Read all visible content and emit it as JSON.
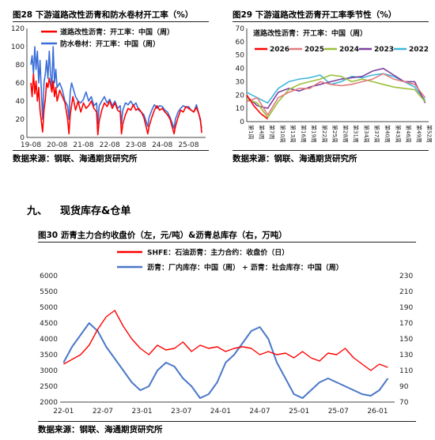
{
  "charts": {
    "c28": {
      "title": "图28 下游道路改性沥青和防水卷材开工率（%）",
      "source": "数据来源：钢联、海通期货研究所",
      "legend": [
        "道路改性沥青：开工率：中国（周）",
        "防水卷材：开工率：中国（周）"
      ]
    },
    "c29": {
      "title": "图29 下游道路改性沥青开工率季节性（%）",
      "source": "数据来源：钢联、海通期货研究所",
      "legend_title": "道路改性沥青：开工率：中国（周）",
      "legend": [
        "2026",
        "2025",
        "2024",
        "2023",
        "2022"
      ]
    },
    "c30": {
      "title": "图30 沥青主力合约收盘价（左，元/吨）&沥青总库存（右，万吨）",
      "source": "数据来源：钢联、海通期货研究所",
      "legend": [
        "SHFE：石油沥青：主力合约：收盘价（日）",
        "沥青：厂内库存：中国（周） + 沥青：社会库存：中国（周）"
      ]
    }
  },
  "section": {
    "num": "九、",
    "title": "现货库存&仓单"
  },
  "chart_data": [
    {
      "type": "line",
      "title": "图28 下游道路改性沥青和防水卷材开工率（%）",
      "x_ticks": [
        "19-08",
        "20-08",
        "21-08",
        "22-08",
        "23-08",
        "24-08",
        "25-08"
      ],
      "y_ticks": [
        0,
        20,
        40,
        60,
        80,
        100,
        120
      ],
      "ylim": [
        0,
        120
      ],
      "series": [
        {
          "name": "道路改性沥青：开工率：中国（周）",
          "color": "#ff0000",
          "x": [
            0,
            0.05,
            0.1,
            0.15,
            0.2,
            0.25,
            0.3,
            0.35,
            0.45,
            0.5,
            0.55,
            0.6,
            0.65,
            0.7,
            0.75,
            0.8,
            0.85,
            0.9,
            0.95,
            1.0,
            1.1,
            1.2,
            1.3,
            1.4,
            1.45,
            1.5,
            1.55,
            1.6,
            1.7,
            1.8,
            1.9,
            2.0,
            2.1,
            2.2,
            2.3,
            2.4,
            2.5,
            2.55,
            2.6,
            2.7,
            2.8,
            2.9,
            3.0,
            3.1,
            3.2,
            3.3,
            3.4,
            3.45,
            3.5,
            3.6,
            3.7,
            3.8,
            3.9,
            4.0,
            4.1,
            4.2,
            4.3,
            4.45,
            4.5,
            4.6,
            4.7,
            4.8,
            4.9,
            5.0,
            5.1,
            5.2,
            5.3,
            5.45,
            5.5,
            5.6,
            5.7,
            5.8,
            5.9,
            6.0,
            6.1,
            6.2,
            6.3,
            6.4,
            6.45,
            6.5
          ],
          "y": [
            60,
            45,
            70,
            48,
            62,
            40,
            55,
            30,
            6,
            30,
            42,
            60,
            55,
            65,
            58,
            50,
            62,
            45,
            55,
            40,
            52,
            45,
            38,
            20,
            4,
            25,
            35,
            45,
            30,
            40,
            28,
            38,
            32,
            35,
            40,
            32,
            28,
            3,
            18,
            30,
            38,
            34,
            40,
            32,
            38,
            30,
            28,
            4,
            15,
            25,
            32,
            30,
            36,
            30,
            32,
            28,
            22,
            4,
            12,
            22,
            30,
            35,
            30,
            32,
            28,
            25,
            20,
            4,
            12,
            22,
            30,
            28,
            34,
            32,
            30,
            28,
            33,
            25,
            20,
            5
          ]
        },
        {
          "name": "防水卷材：开工率：中国（周）",
          "color": "#3a6fd8",
          "x": [
            0,
            0.05,
            0.1,
            0.15,
            0.2,
            0.25,
            0.3,
            0.35,
            0.45,
            0.5,
            0.55,
            0.6,
            0.65,
            0.7,
            0.75,
            0.8,
            0.85,
            0.9,
            0.95,
            1.0,
            1.1,
            1.2,
            1.3,
            1.4,
            1.45,
            1.5,
            1.55,
            1.6,
            1.7,
            1.8,
            1.9,
            2.0,
            2.1,
            2.2,
            2.3,
            2.4,
            2.5,
            2.55,
            2.6,
            2.7,
            2.8,
            2.9,
            3.0,
            3.1,
            3.2,
            3.3,
            3.4,
            3.45,
            3.5,
            3.6,
            3.7,
            3.8,
            3.9,
            4.0,
            4.1,
            4.2,
            4.3,
            4.45,
            4.5,
            4.6,
            4.7,
            4.8,
            4.9,
            5.0,
            5.1,
            5.2,
            5.3,
            5.45,
            5.5,
            5.6,
            5.7,
            5.8,
            5.9,
            6.0,
            6.1,
            6.2,
            6.3,
            6.4,
            6.45,
            6.5
          ],
          "y": [
            80,
            90,
            70,
            100,
            75,
            95,
            60,
            85,
            20,
            60,
            70,
            85,
            65,
            95,
            70,
            55,
            100,
            60,
            75,
            55,
            60,
            52,
            40,
            35,
            20,
            50,
            60,
            55,
            45,
            40,
            38,
            42,
            50,
            40,
            45,
            35,
            38,
            15,
            35,
            40,
            45,
            38,
            42,
            35,
            40,
            32,
            35,
            15,
            30,
            38,
            36,
            40,
            35,
            38,
            30,
            28,
            25,
            12,
            22,
            30,
            36,
            32,
            35,
            34,
            30,
            28,
            22,
            10,
            20,
            28,
            32,
            35,
            33,
            34,
            30,
            28,
            36,
            25,
            18,
            10
          ]
        }
      ]
    },
    {
      "type": "line",
      "title": "图29 下游道路改性沥青开工率季节性（%）",
      "x_ticks": [
        "第1周",
        "第4周",
        "第7周",
        "第10周",
        "第13周",
        "第16周",
        "第19周",
        "第22周",
        "第25周",
        "第28周",
        "第31周",
        "第34周",
        "第37周",
        "第40周",
        "第43周",
        "第46周",
        "第49周",
        "第52周"
      ],
      "y_ticks": [
        0,
        10,
        20,
        30,
        40,
        50,
        60,
        70
      ],
      "ylim": [
        0,
        70
      ],
      "series": [
        {
          "name": "2026",
          "color": "#ff0000",
          "x": [
            1,
            3,
            5,
            7
          ],
          "y": [
            20,
            12,
            6,
            2
          ]
        },
        {
          "name": "2025",
          "color": "#e07b7b",
          "x": [
            1,
            4,
            7,
            10,
            13,
            16,
            19,
            22,
            25,
            28,
            31,
            34,
            37,
            40,
            43,
            46,
            49,
            52
          ],
          "y": [
            15,
            18,
            5,
            18,
            22,
            25,
            25,
            30,
            28,
            27,
            28,
            30,
            32,
            36,
            32,
            30,
            28,
            18
          ]
        },
        {
          "name": "2024",
          "color": "#9bbf3a",
          "x": [
            1,
            4,
            7,
            10,
            13,
            16,
            19,
            22,
            25,
            28,
            31,
            34,
            37,
            40,
            43,
            46,
            49,
            52
          ],
          "y": [
            17,
            14,
            3,
            15,
            24,
            28,
            30,
            32,
            35,
            34,
            30,
            32,
            30,
            28,
            26,
            25,
            24,
            15
          ]
        },
        {
          "name": "2023",
          "color": "#7b3fa0",
          "x": [
            1,
            4,
            7,
            10,
            13,
            16,
            19,
            22,
            25,
            28,
            31,
            34,
            37,
            40,
            43,
            46,
            49,
            52
          ],
          "y": [
            19,
            12,
            10,
            22,
            25,
            23,
            26,
            28,
            30,
            32,
            33,
            34,
            38,
            40,
            35,
            30,
            30,
            14
          ]
        },
        {
          "name": "2022",
          "color": "#3fb6dc",
          "x": [
            1,
            4,
            7,
            10,
            13,
            16,
            19,
            22,
            25,
            28,
            31,
            34,
            37,
            40,
            43,
            46,
            49,
            52
          ],
          "y": [
            22,
            18,
            14,
            25,
            30,
            32,
            33,
            35,
            28,
            30,
            34,
            33,
            35,
            36,
            34,
            30,
            26,
            16
          ]
        }
      ]
    },
    {
      "type": "line",
      "title": "图30 沥青主力合约收盘价（左，元/吨）&沥青总库存（右，万吨）",
      "x_ticks": [
        "22-01",
        "22-07",
        "23-01",
        "23-07",
        "24-01",
        "24-07",
        "25-01",
        "25-07",
        "26-01"
      ],
      "y_ticks_left": [
        2000,
        2500,
        3000,
        3500,
        4000,
        4500,
        5000,
        5500,
        6000
      ],
      "y_ticks_right": [
        70,
        90,
        110,
        130,
        150,
        170,
        190,
        210,
        230
      ],
      "ylim_left": [
        2000,
        6000
      ],
      "ylim_right": [
        70,
        230
      ],
      "series": [
        {
          "name": "SHFE：石油沥青：主力合约：收盘价（日）",
          "axis": "left",
          "color": "#ff0000",
          "x": [
            0,
            0.25,
            0.5,
            0.75,
            1.0,
            1.25,
            1.5,
            1.75,
            2.0,
            2.25,
            2.5,
            2.75,
            3.0,
            3.25,
            3.5,
            3.75,
            4.0,
            4.25,
            4.5,
            4.75,
            5.0,
            5.25,
            5.5,
            5.75,
            6.0,
            6.25,
            6.5,
            6.75,
            7.0,
            7.25,
            7.5,
            7.75,
            8.0,
            8.25,
            8.5,
            8.75,
            9.0,
            9.25,
            9.5
          ],
          "y": [
            3200,
            3350,
            3500,
            3800,
            4300,
            4700,
            4900,
            4400,
            4000,
            3700,
            3500,
            3800,
            3650,
            3700,
            3900,
            3600,
            3800,
            3700,
            3750,
            3600,
            3700,
            3750,
            3700,
            3500,
            3600,
            3500,
            3550,
            3400,
            3600,
            3400,
            3300,
            3550,
            3500,
            3700,
            3400,
            3200,
            3000,
            3200,
            3100
          ]
        },
        {
          "name": "沥青：厂内库存：中国（周） + 沥青：社会库存：中国（周）",
          "axis": "right",
          "color": "#4a78c8",
          "x": [
            0,
            0.25,
            0.5,
            0.75,
            1.0,
            1.25,
            1.5,
            1.75,
            2.0,
            2.25,
            2.5,
            2.75,
            3.0,
            3.25,
            3.5,
            3.75,
            4.0,
            4.25,
            4.5,
            4.75,
            5.0,
            5.25,
            5.5,
            5.75,
            6.0,
            6.25,
            6.5,
            6.75,
            7.0,
            7.25,
            7.5,
            7.75,
            8.0,
            8.25,
            8.5,
            8.75,
            9.0,
            9.25,
            9.5
          ],
          "y": [
            120,
            140,
            155,
            170,
            160,
            140,
            125,
            110,
            95,
            85,
            90,
            110,
            120,
            115,
            100,
            90,
            75,
            80,
            95,
            120,
            130,
            145,
            160,
            165,
            150,
            120,
            100,
            80,
            75,
            85,
            95,
            100,
            95,
            90,
            85,
            80,
            78,
            85,
            100
          ]
        }
      ]
    }
  ]
}
